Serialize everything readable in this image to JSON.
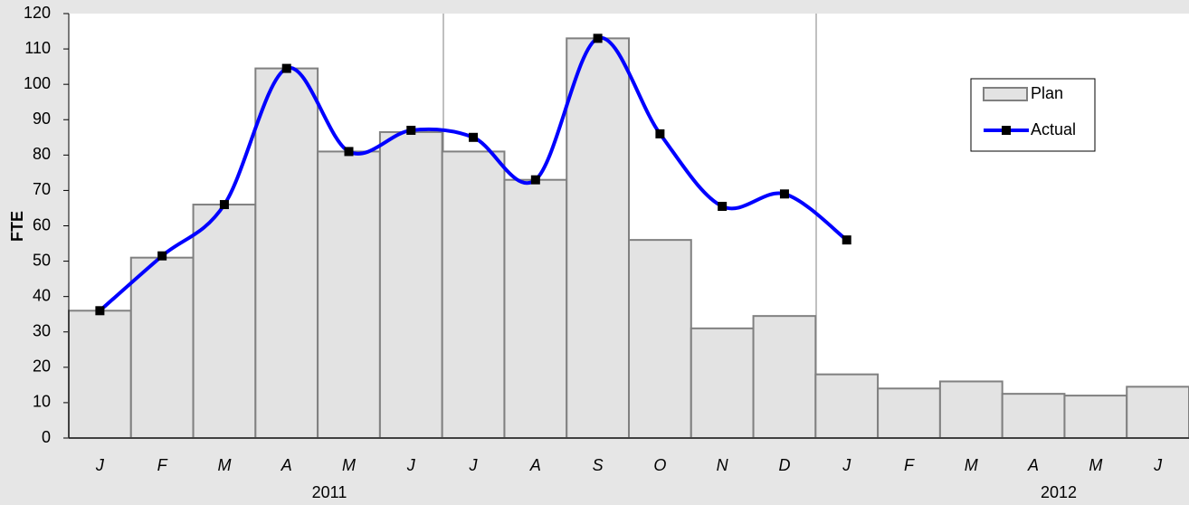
{
  "chart_data": {
    "type": "bar_line",
    "y_label": "FTE",
    "categories": [
      "J",
      "F",
      "M",
      "A",
      "M",
      "J",
      "J",
      "A",
      "S",
      "O",
      "N",
      "D",
      "J",
      "F",
      "M",
      "A",
      "M",
      "J"
    ],
    "x_groups": [
      "2011",
      "2012"
    ],
    "series": [
      {
        "name": "Plan",
        "type": "bar",
        "color": "#e3e3e3",
        "values": [
          36,
          51,
          66,
          104.5,
          81,
          86.5,
          81,
          73,
          113,
          56,
          31,
          34.5,
          18,
          14,
          16,
          12.5,
          12,
          14.5
        ]
      },
      {
        "name": "Actual",
        "type": "line",
        "color": "#0000ff",
        "values": [
          36,
          51.5,
          66,
          104.5,
          81,
          87,
          85,
          73,
          113,
          86,
          65.5,
          69,
          56,
          null,
          null,
          null,
          null,
          null
        ]
      }
    ],
    "ylim": [
      0,
      120
    ],
    "yticks": [
      0,
      10,
      20,
      30,
      40,
      50,
      60,
      70,
      80,
      90,
      100,
      110,
      120
    ]
  }
}
